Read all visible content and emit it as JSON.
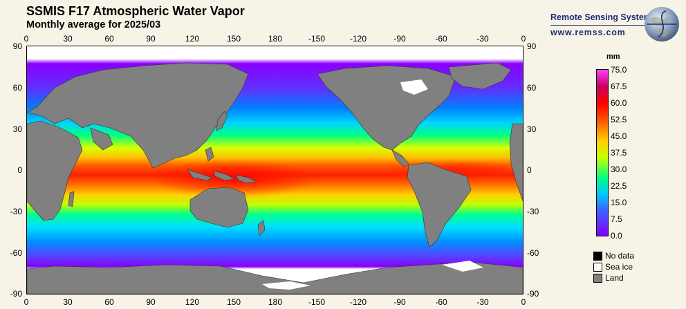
{
  "header": {
    "title": "SSMIS F17 Atmospheric Water Vapor",
    "subtitle": "Monthly average for 2025/03"
  },
  "logo": {
    "name": "Remote Sensing Systems",
    "url": "www.remss.com"
  },
  "axes": {
    "lon_ticks": [
      "0",
      "30",
      "60",
      "90",
      "120",
      "150",
      "180",
      "-150",
      "-120",
      "-90",
      "-60",
      "-30",
      "0"
    ],
    "lat_ticks": [
      "90",
      "60",
      "30",
      "0",
      "-30",
      "-60",
      "-90"
    ]
  },
  "colorbar": {
    "unit": "mm",
    "labels": [
      "75.0",
      "67.5",
      "60.0",
      "52.5",
      "45.0",
      "37.5",
      "30.0",
      "22.5",
      "15.0",
      "7.5",
      "0.0"
    ],
    "range": [
      0,
      75
    ]
  },
  "legend": {
    "items": [
      {
        "label": "No data",
        "color": "#000000"
      },
      {
        "label": "Sea ice",
        "color": "#ffffff"
      },
      {
        "label": "Land",
        "color": "#808080"
      }
    ]
  },
  "colors": {
    "land": "#808080",
    "sea_ice": "#ffffff",
    "background": "#f7f3e6"
  }
}
